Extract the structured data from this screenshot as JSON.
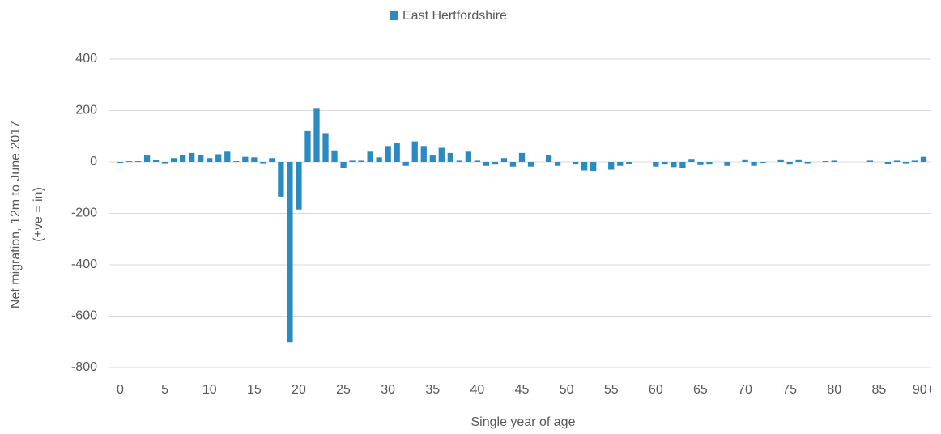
{
  "chart_data": {
    "type": "bar",
    "legend": "top",
    "ylabel": [
      "Net migration, 12m to June 2017",
      "(+ve = in)"
    ],
    "xlabel": "Single year of age",
    "categories": [
      "0",
      null,
      null,
      null,
      null,
      "5",
      null,
      null,
      null,
      null,
      "10",
      null,
      null,
      null,
      null,
      "15",
      null,
      null,
      null,
      null,
      "20",
      null,
      null,
      null,
      null,
      "25",
      null,
      null,
      null,
      null,
      "30",
      null,
      null,
      null,
      null,
      "35",
      null,
      null,
      null,
      null,
      "40",
      null,
      null,
      null,
      null,
      "45",
      null,
      null,
      null,
      null,
      "50",
      null,
      null,
      null,
      null,
      "55",
      null,
      null,
      null,
      null,
      "60",
      null,
      null,
      null,
      null,
      "65",
      null,
      null,
      null,
      null,
      "70",
      null,
      null,
      null,
      null,
      "75",
      null,
      null,
      null,
      null,
      "80",
      null,
      null,
      null,
      null,
      "85",
      null,
      null,
      null,
      null,
      "90+"
    ],
    "series": [
      {
        "name": "East Hertfordshire",
        "color": "#2a8bc2",
        "values": [
          -3,
          3,
          3,
          25,
          8,
          -5,
          15,
          28,
          35,
          28,
          15,
          30,
          40,
          3,
          20,
          18,
          -5,
          15,
          -135,
          -700,
          -185,
          120,
          210,
          112,
          45,
          -25,
          5,
          5,
          40,
          18,
          62,
          75,
          -15,
          80,
          62,
          25,
          55,
          35,
          5,
          40,
          5,
          -15,
          -10,
          15,
          -18,
          35,
          -18,
          0,
          25,
          -15,
          0,
          -10,
          -33,
          -35,
          0,
          -30,
          -15,
          -8,
          0,
          0,
          -18,
          -10,
          -20,
          -25,
          12,
          -12,
          -10,
          0,
          -15,
          0,
          10,
          -15,
          -3,
          0,
          10,
          -10,
          10,
          -5,
          0,
          3,
          5,
          0,
          0,
          0,
          5,
          0,
          -8,
          5,
          -5,
          5,
          20
        ]
      }
    ],
    "ylim": [
      -800,
      400
    ],
    "yticks": [
      400,
      200,
      0,
      -200,
      -400,
      -600,
      -800
    ],
    "grid": true
  }
}
